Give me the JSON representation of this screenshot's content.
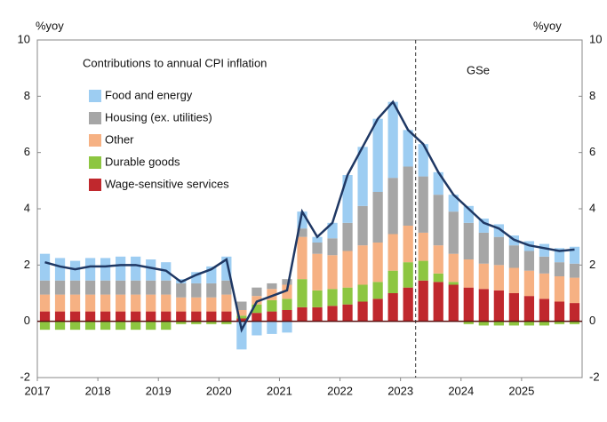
{
  "chart_data": {
    "type": "stacked_bar_line",
    "legend_title": "Contributions to annual CPI inflation",
    "annotations": {
      "left_unit": "%yoy",
      "right_unit": "%yoy",
      "forecast": "GSe"
    },
    "categories": [
      "2017",
      null,
      null,
      null,
      "2018",
      null,
      null,
      null,
      "2019",
      null,
      null,
      null,
      "2020",
      null,
      null,
      null,
      "2021",
      null,
      null,
      null,
      "2022",
      null,
      null,
      null,
      "2023",
      null,
      null,
      null,
      "2024",
      null,
      null,
      null,
      "2025",
      null,
      null,
      null
    ],
    "series": [
      {
        "name": "Wage-sensitive services",
        "color": "#c0282d",
        "values": [
          0.35,
          0.35,
          0.35,
          0.35,
          0.35,
          0.35,
          0.35,
          0.35,
          0.35,
          0.35,
          0.35,
          0.35,
          0.35,
          0.1,
          0.3,
          0.35,
          0.4,
          0.5,
          0.5,
          0.55,
          0.6,
          0.7,
          0.8,
          1.0,
          1.2,
          1.45,
          1.4,
          1.3,
          1.2,
          1.15,
          1.1,
          1.0,
          0.9,
          0.8,
          0.7,
          0.65
        ]
      },
      {
        "name": "Durable goods",
        "color": "#8dc641",
        "values": [
          -0.3,
          -0.3,
          -0.3,
          -0.3,
          -0.3,
          -0.3,
          -0.3,
          -0.3,
          -0.3,
          -0.1,
          -0.1,
          -0.1,
          -0.1,
          0.1,
          0.3,
          0.4,
          0.4,
          1.0,
          0.6,
          0.6,
          0.6,
          0.6,
          0.6,
          0.8,
          0.9,
          0.7,
          0.3,
          0.1,
          -0.1,
          -0.15,
          -0.15,
          -0.15,
          -0.15,
          -0.15,
          -0.1,
          -0.1
        ]
      },
      {
        "name": "Other",
        "color": "#f6b183",
        "values": [
          0.6,
          0.6,
          0.6,
          0.6,
          0.6,
          0.6,
          0.6,
          0.6,
          0.6,
          0.5,
          0.5,
          0.5,
          0.6,
          0.2,
          0.3,
          0.4,
          0.5,
          1.5,
          1.3,
          1.2,
          1.3,
          1.4,
          1.4,
          1.3,
          1.3,
          1.0,
          1.0,
          1.0,
          1.0,
          0.9,
          0.9,
          0.9,
          0.9,
          0.9,
          0.9,
          0.9
        ]
      },
      {
        "name": "Housing (ex. utilities)",
        "color": "#a6a6a6",
        "values": [
          0.5,
          0.5,
          0.5,
          0.5,
          0.5,
          0.5,
          0.5,
          0.5,
          0.5,
          0.5,
          0.5,
          0.5,
          0.5,
          0.3,
          0.3,
          0.2,
          0.2,
          0.3,
          0.4,
          0.6,
          1.0,
          1.4,
          1.8,
          2.0,
          2.1,
          2.0,
          1.8,
          1.5,
          1.3,
          1.1,
          1.0,
          0.8,
          0.7,
          0.6,
          0.5,
          0.5
        ]
      },
      {
        "name": "Food and energy",
        "color": "#9dcdf2",
        "values": [
          0.95,
          0.8,
          0.7,
          0.8,
          0.8,
          0.85,
          0.85,
          0.75,
          0.65,
          0.15,
          0.4,
          0.6,
          0.85,
          -1.0,
          -0.5,
          -0.45,
          -0.4,
          0.6,
          0.2,
          0.55,
          1.7,
          2.1,
          2.6,
          2.7,
          1.3,
          1.15,
          0.8,
          0.6,
          0.6,
          0.5,
          0.45,
          0.35,
          0.35,
          0.45,
          0.5,
          0.6
        ]
      }
    ],
    "line": {
      "color": "#1f3864",
      "values": [
        2.1,
        1.95,
        1.85,
        1.95,
        1.95,
        2.0,
        2.0,
        1.9,
        1.8,
        1.4,
        1.65,
        1.85,
        2.2,
        -0.3,
        0.7,
        0.9,
        1.1,
        3.9,
        3.0,
        3.5,
        5.2,
        6.2,
        7.2,
        7.8,
        6.8,
        6.3,
        5.3,
        4.5,
        4.0,
        3.5,
        3.3,
        2.9,
        2.7,
        2.6,
        2.5,
        2.55
      ]
    },
    "forecast_start": 2023.25,
    "x_start": 2017,
    "ylim": [
      -2,
      10
    ],
    "yticks": [
      -2,
      0,
      2,
      4,
      6,
      8,
      10
    ],
    "y2lim": [
      -2,
      10
    ],
    "y2ticks": [
      -2,
      0,
      2,
      4,
      6,
      8,
      10
    ]
  }
}
